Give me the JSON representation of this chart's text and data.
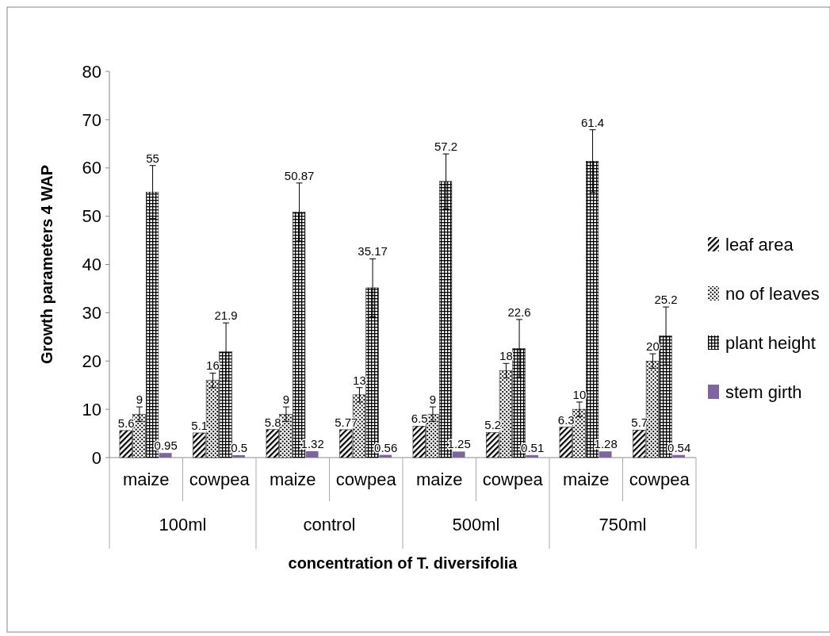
{
  "chart_data": {
    "type": "bar",
    "xlabel": "concentration of T. diversifolia",
    "ylabel": "Growth parameters 4 WAP",
    "categories": [
      "maize",
      "cowpea",
      "maize",
      "cowpea",
      "maize",
      "cowpea",
      "maize",
      "cowpea"
    ],
    "annotations": [
      "100ml",
      "control",
      "500ml",
      "750ml"
    ],
    "series": [
      {
        "name": "leaf area",
        "color": "#000000",
        "values": [
          5.6,
          5.1,
          5.8,
          5.77,
          6.5,
          5.2,
          6.3,
          5.7
        ]
      },
      {
        "name": "no of leaves",
        "color": "#000000",
        "values": [
          9,
          16,
          9,
          13,
          9,
          18,
          10,
          20
        ],
        "errors": [
          1.5,
          1.5,
          1.5,
          1.5,
          1.5,
          1.5,
          1.5,
          1.5
        ]
      },
      {
        "name": "plant height",
        "color": "#000000",
        "values": [
          55,
          21.9,
          50.87,
          35.17,
          57.2,
          22.6,
          61.4,
          25.2
        ],
        "errors": [
          5.5,
          6,
          6,
          6,
          5.7,
          6,
          6.5,
          6
        ]
      },
      {
        "name": "stem girth",
        "color": "#8064a2",
        "values": [
          0.95,
          0.5,
          1.32,
          0.56,
          1.25,
          0.51,
          1.28,
          0.54
        ]
      }
    ],
    "ylim": [
      0,
      80
    ],
    "yticks": [
      0,
      10,
      20,
      30,
      40,
      50,
      60,
      70,
      80
    ],
    "data_labels": true,
    "legend": "right"
  }
}
